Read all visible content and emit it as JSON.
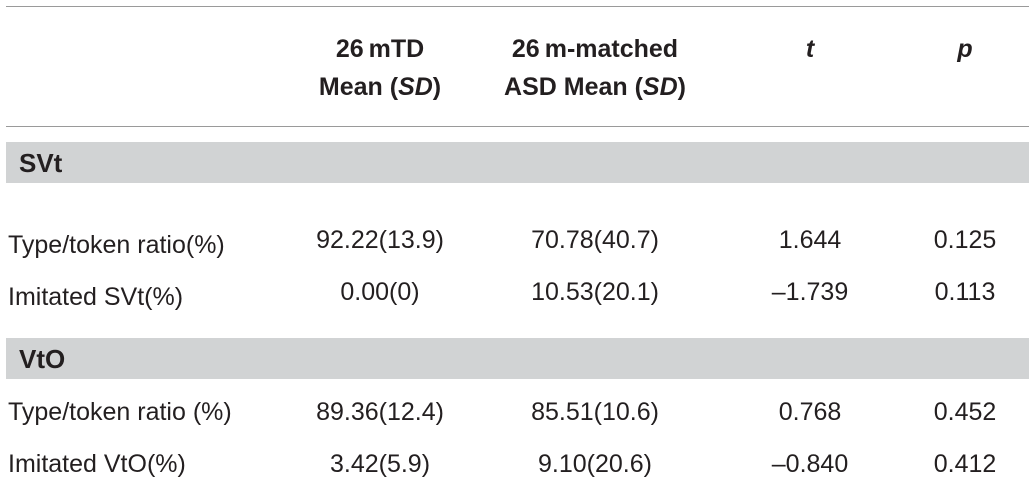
{
  "table": {
    "headers": [
      {
        "line1": "26 mTD",
        "line2_pre": "Mean (",
        "line2_em": "SD",
        "line2_post": ")"
      },
      {
        "line1": "26 m-matched",
        "line2_pre": "ASD Mean (",
        "line2_em": "SD",
        "line2_post": ")"
      },
      {
        "label": "t"
      },
      {
        "label": "p"
      }
    ],
    "sections": [
      {
        "title": "SVt",
        "rows": [
          {
            "label": "Type/token ratio(%)",
            "mtd": "92.22(13.9)",
            "asd": "70.78(40.7)",
            "t": "1.644",
            "p": "0.125"
          },
          {
            "label": "Imitated SVt(%)",
            "mtd": "0.00(0)",
            "asd": "10.53(20.1)",
            "t": "–1.739",
            "p": "0.113"
          }
        ]
      },
      {
        "title": "VtO",
        "rows": [
          {
            "label": "Type/token ratio (%)",
            "mtd": "89.36(12.4)",
            "asd": "85.51(10.6)",
            "t": "0.768",
            "p": "0.452"
          },
          {
            "label": "Imitated VtO(%)",
            "mtd": "3.42(5.9)",
            "asd": "9.10(20.6)",
            "t": "–0.840",
            "p": "0.412"
          }
        ]
      }
    ]
  }
}
